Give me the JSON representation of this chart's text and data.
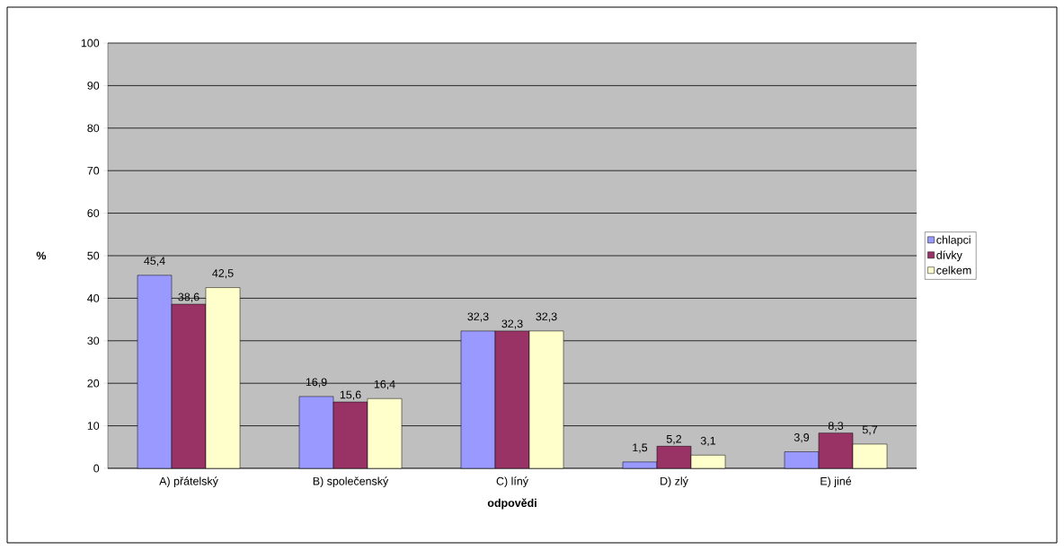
{
  "chart_data": {
    "type": "bar",
    "xlabel": "odpovědi",
    "ylabel": "%",
    "categories": [
      "A) přátelský",
      "B) společenský",
      "C) líný",
      "D) zlý",
      "E) jiné"
    ],
    "series": [
      {
        "name": "chlapci",
        "color": "#9999ff",
        "values": [
          45.4,
          16.9,
          32.3,
          1.5,
          3.9
        ],
        "value_labels": [
          "45,4",
          "16,9",
          "32,3",
          "1,5",
          "3,9"
        ]
      },
      {
        "name": "dívky",
        "color": "#993366",
        "values": [
          38.6,
          15.6,
          32.3,
          5.2,
          8.3
        ],
        "value_labels": [
          "38,6",
          "15,6",
          "32,3",
          "5,2",
          "8,3"
        ]
      },
      {
        "name": "celkem",
        "color": "#ffffcc",
        "values": [
          42.5,
          16.4,
          32.3,
          3.1,
          5.7
        ],
        "value_labels": [
          "42,5",
          "16,4",
          "32,3",
          "3,1",
          "5,7"
        ]
      }
    ],
    "ylim": [
      0,
      100
    ],
    "yticks": [
      0,
      10,
      20,
      30,
      40,
      50,
      60,
      70,
      80,
      90,
      100
    ],
    "grid": "y",
    "legend": "right"
  }
}
